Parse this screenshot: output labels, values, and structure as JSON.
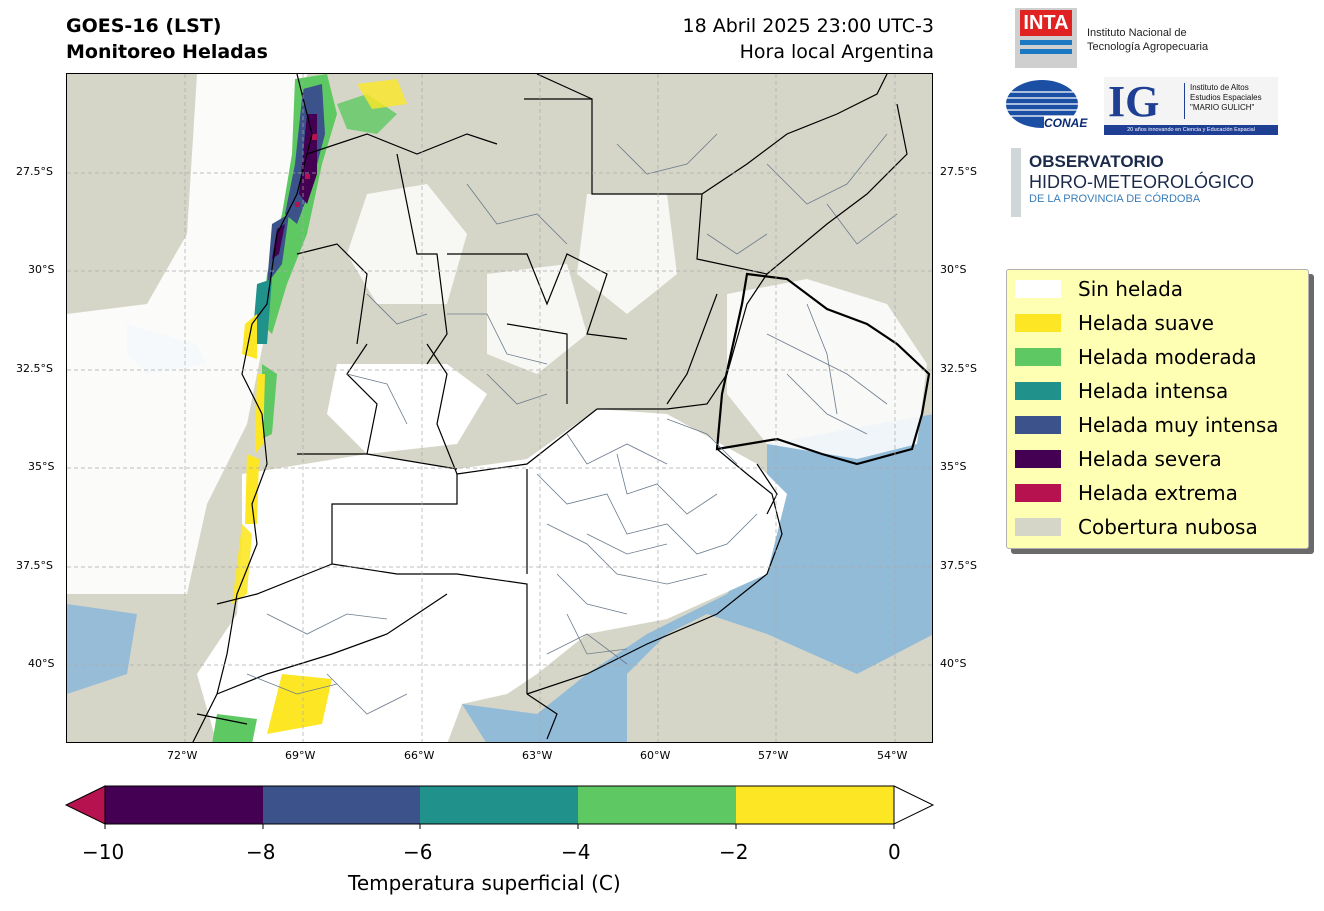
{
  "header": {
    "title_line1": "GOES-16 (LST)",
    "title_line2": "Monitoreo Heladas",
    "date_line": "18 Abril 2025 23:00 UTC-3",
    "time_note": "Hora local Argentina"
  },
  "map": {
    "lat_labels": [
      "27.5°S",
      "30°S",
      "32.5°S",
      "35°S",
      "37.5°S",
      "40°S"
    ],
    "lon_labels": [
      "72°W",
      "69°W",
      "66°W",
      "63°W",
      "60°W",
      "57°W",
      "54°W"
    ],
    "colors": {
      "cloud": "#d6d6c8",
      "ocean": "#7bb1dd",
      "no_frost": "#ffffff",
      "borders": "#000000",
      "departments": "#6b7b8c"
    }
  },
  "legend": {
    "items": [
      {
        "label": "Sin helada",
        "color": "#ffffff"
      },
      {
        "label": "Helada suave",
        "color": "#fde725"
      },
      {
        "label": "Helada moderada",
        "color": "#5ec962"
      },
      {
        "label": "Helada intensa",
        "color": "#21918c"
      },
      {
        "label": "Helada muy intensa",
        "color": "#3b528b"
      },
      {
        "label": "Helada severa",
        "color": "#440154"
      },
      {
        "label": "Helada extrema",
        "color": "#b5124f"
      },
      {
        "label": "Cobertura nubosa",
        "color": "#d6d6c8"
      }
    ]
  },
  "colorbar": {
    "ticks": [
      "−10",
      "−8",
      "−6",
      "−4",
      "−2",
      "0"
    ],
    "label": "Temperatura superficial (C)",
    "segments": [
      "#440154",
      "#3b528b",
      "#21918c",
      "#5ec962",
      "#fde725"
    ],
    "under_color": "#b5124f",
    "over_color": "#ffffff"
  },
  "logos": {
    "inta_mark": "INTA",
    "inta_name_line1": "Instituto Nacional de",
    "inta_name_line2": "Tecnología Agropecuaria",
    "conae": "CONAE",
    "ig_mark": "IG",
    "ig_line1": "Instituto de Altos",
    "ig_line2": "Estudios Espaciales",
    "ig_line3": "\"MARIO GULICH\"",
    "ig_footer": "20 años innovando en Ciencia y Educación Espacial",
    "obs_line1": "OBSERVATORIO",
    "obs_line2": "HIDRO-METEOROLÓGICO",
    "obs_line3": "DE LA PROVINCIA DE CÓRDOBA"
  }
}
